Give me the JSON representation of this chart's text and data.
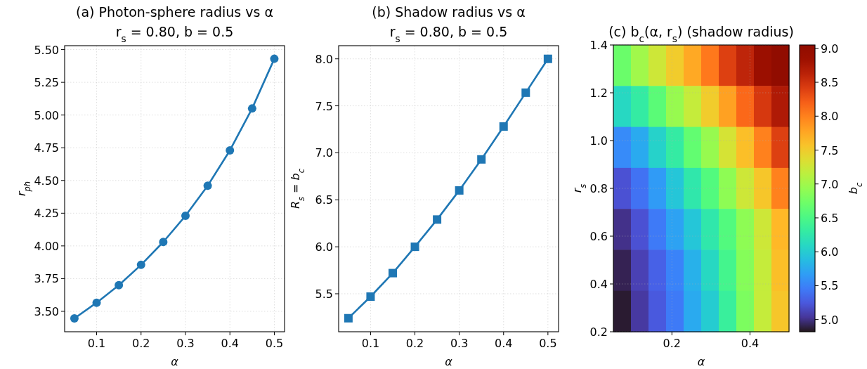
{
  "chart_data": [
    {
      "type": "line",
      "title": "(a) Photon-sphere radius vs α",
      "subtitle": "r$_{s}$ = 0.80, b = 0.5",
      "xlabel": "α",
      "ylabel": "r$_{ph}$",
      "x": [
        0.05,
        0.1,
        0.15,
        0.2,
        0.25,
        0.3,
        0.35,
        0.4,
        0.45,
        0.5
      ],
      "values": [
        3.446,
        3.566,
        3.7,
        3.855,
        4.03,
        4.23,
        4.46,
        4.73,
        5.05,
        5.43
      ],
      "color": "#1f77b4",
      "marker": "circle",
      "xlim": [
        0.028,
        0.523
      ],
      "xticks": [
        0.1,
        0.2,
        0.3,
        0.4,
        0.5
      ],
      "ylim": [
        3.344,
        5.53
      ],
      "yticks": [
        {
          "value": 3.5,
          "label": "3.50"
        },
        {
          "value": 3.75,
          "label": "3.75"
        },
        {
          "value": 4,
          "label": "4.00"
        },
        {
          "value": 4.25,
          "label": "4.25"
        },
        {
          "value": 4.5,
          "label": "4.50"
        },
        {
          "value": 4.75,
          "label": "4.75"
        },
        {
          "value": 5,
          "label": "5.00"
        },
        {
          "value": 5.25,
          "label": "5.25"
        },
        {
          "value": 5.5,
          "label": "5.50"
        }
      ],
      "grid": true
    },
    {
      "type": "line",
      "title": "(b) Shadow radius vs α",
      "subtitle": "r$_{s}$ = 0.80, b = 0.5",
      "xlabel": "α",
      "ylabel": "R$_{s}$ = b$_{c}$",
      "x": [
        0.05,
        0.1,
        0.15,
        0.2,
        0.25,
        0.3,
        0.35,
        0.4,
        0.45,
        0.5
      ],
      "values": [
        5.24,
        5.47,
        5.72,
        6.0,
        6.29,
        6.6,
        6.93,
        7.28,
        7.64,
        8.0
      ],
      "color": "#1f77b4",
      "marker": "square",
      "xlim": [
        0.028,
        0.524
      ],
      "xticks": [
        0.1,
        0.2,
        0.3,
        0.4,
        0.5
      ],
      "ylim": [
        5.096,
        8.14
      ],
      "yticks": [
        {
          "value": 5.5,
          "label": "5.5"
        },
        {
          "value": 6,
          "label": "6.0"
        },
        {
          "value": 6.5,
          "label": "6.5"
        },
        {
          "value": 7,
          "label": "7.0"
        },
        {
          "value": 7.5,
          "label": "7.5"
        },
        {
          "value": 8,
          "label": "8.0"
        }
      ],
      "grid": true
    },
    {
      "type": "heatmap",
      "title": "(c) b$_{c}$(α, r$_{s}$) (shadow radius)",
      "xlabel": "α",
      "ylabel": "r$_{s}$",
      "clabel": "b$_{c}$",
      "cells": [
        [
          6.7,
          7.0,
          7.25,
          7.5,
          7.75,
          8.05,
          8.4,
          8.6,
          8.85,
          9.0
        ],
        [
          6.1,
          6.3,
          6.6,
          6.95,
          7.2,
          7.5,
          7.8,
          8.15,
          8.45,
          8.7
        ],
        [
          5.55,
          5.75,
          6.05,
          6.3,
          6.65,
          6.95,
          7.3,
          7.6,
          8.0,
          8.4
        ],
        [
          5.2,
          5.4,
          5.65,
          5.95,
          6.25,
          6.55,
          6.9,
          7.25,
          7.55,
          8.0
        ],
        [
          5.0,
          5.2,
          5.45,
          5.7,
          5.95,
          6.25,
          6.55,
          6.9,
          7.25,
          7.65
        ],
        [
          4.9,
          5.1,
          5.3,
          5.5,
          5.8,
          6.1,
          6.45,
          6.85,
          7.2,
          7.6
        ],
        [
          4.85,
          5.05,
          5.25,
          5.45,
          5.75,
          6.0,
          6.35,
          6.8,
          7.2,
          7.55
        ]
      ],
      "xlim": [
        0.05,
        0.5
      ],
      "xticks": [
        0.2,
        0.4
      ],
      "ylim": [
        0.2,
        1.4
      ],
      "yticks": [
        0.2,
        0.4,
        0.6,
        0.8,
        {
          "value": 1,
          "label": "1.0"
        },
        1.2,
        1.4
      ],
      "clim": [
        4.82,
        9.05
      ],
      "cticks": [
        {
          "value": 5,
          "label": "5.0"
        },
        {
          "value": 5.5,
          "label": "5.5"
        },
        {
          "value": 6,
          "label": "6.0"
        },
        {
          "value": 6.5,
          "label": "6.5"
        },
        {
          "value": 7,
          "label": "7.0"
        },
        {
          "value": 7.5,
          "label": "7.5"
        },
        {
          "value": 8,
          "label": "8.0"
        },
        {
          "value": 8.5,
          "label": "8.5"
        },
        {
          "value": 9,
          "label": "9.0"
        }
      ],
      "grid": true
    }
  ]
}
